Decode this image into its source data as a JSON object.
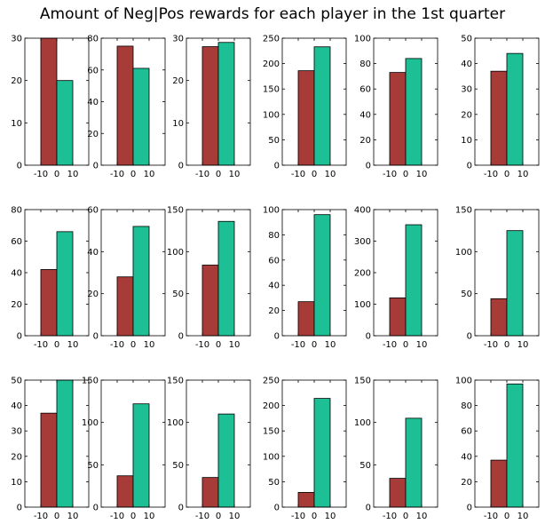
{
  "title": "Amount of Neg|Pos rewards for each player in the 1st quarter",
  "colors": {
    "neg": "#a63b38",
    "pos": "#1dbf94",
    "axis": "#000000"
  },
  "chart_data": [
    {
      "type": "bar",
      "x": [
        -5,
        5
      ],
      "values": [
        30,
        20
      ],
      "ylim": [
        0,
        30
      ],
      "yticks": [
        0,
        10,
        20,
        30
      ],
      "xticks": [
        -10,
        0,
        10
      ]
    },
    {
      "type": "bar",
      "x": [
        -5,
        5
      ],
      "values": [
        75,
        61
      ],
      "ylim": [
        0,
        80
      ],
      "yticks": [
        0,
        20,
        40,
        60,
        80
      ],
      "xticks": [
        -10,
        0,
        10
      ]
    },
    {
      "type": "bar",
      "x": [
        -5,
        5
      ],
      "values": [
        28,
        29
      ],
      "ylim": [
        0,
        30
      ],
      "yticks": [
        0,
        10,
        20,
        30
      ],
      "xticks": [
        -10,
        0,
        10
      ]
    },
    {
      "type": "bar",
      "x": [
        -5,
        5
      ],
      "values": [
        186,
        233
      ],
      "ylim": [
        0,
        250
      ],
      "yticks": [
        0,
        50,
        100,
        150,
        200,
        250
      ],
      "xticks": [
        -10,
        0,
        10
      ]
    },
    {
      "type": "bar",
      "x": [
        -5,
        5
      ],
      "values": [
        73,
        84
      ],
      "ylim": [
        0,
        100
      ],
      "yticks": [
        0,
        20,
        40,
        60,
        80,
        100
      ],
      "xticks": [
        -10,
        0,
        10
      ]
    },
    {
      "type": "bar",
      "x": [
        -5,
        5
      ],
      "values": [
        37,
        44
      ],
      "ylim": [
        0,
        50
      ],
      "yticks": [
        0,
        10,
        20,
        30,
        40,
        50
      ],
      "xticks": [
        -10,
        0,
        10
      ]
    },
    {
      "type": "bar",
      "x": [
        -5,
        5
      ],
      "values": [
        42,
        66
      ],
      "ylim": [
        0,
        80
      ],
      "yticks": [
        0,
        20,
        40,
        60,
        80
      ],
      "xticks": [
        -10,
        0,
        10
      ]
    },
    {
      "type": "bar",
      "x": [
        -5,
        5
      ],
      "values": [
        28,
        52
      ],
      "ylim": [
        0,
        60
      ],
      "yticks": [
        0,
        20,
        40,
        60
      ],
      "xticks": [
        -10,
        0,
        10
      ]
    },
    {
      "type": "bar",
      "x": [
        -5,
        5
      ],
      "values": [
        84,
        136
      ],
      "ylim": [
        0,
        150
      ],
      "yticks": [
        0,
        50,
        100,
        150
      ],
      "xticks": [
        -10,
        0,
        10
      ]
    },
    {
      "type": "bar",
      "x": [
        -5,
        5
      ],
      "values": [
        27,
        96
      ],
      "ylim": [
        0,
        100
      ],
      "yticks": [
        0,
        20,
        40,
        60,
        80,
        100
      ],
      "xticks": [
        -10,
        0,
        10
      ]
    },
    {
      "type": "bar",
      "x": [
        -5,
        5
      ],
      "values": [
        120,
        352
      ],
      "ylim": [
        0,
        400
      ],
      "yticks": [
        0,
        100,
        200,
        300,
        400
      ],
      "xticks": [
        -10,
        0,
        10
      ]
    },
    {
      "type": "bar",
      "x": [
        -5,
        5
      ],
      "values": [
        44,
        125
      ],
      "ylim": [
        0,
        150
      ],
      "yticks": [
        0,
        50,
        100,
        150
      ],
      "xticks": [
        -10,
        0,
        10
      ]
    },
    {
      "type": "bar",
      "x": [
        -5,
        5
      ],
      "values": [
        37,
        50
      ],
      "ylim": [
        0,
        50
      ],
      "yticks": [
        0,
        10,
        20,
        30,
        40,
        50
      ],
      "xticks": [
        -10,
        0,
        10
      ]
    },
    {
      "type": "bar",
      "x": [
        -5,
        5
      ],
      "values": [
        37,
        122
      ],
      "ylim": [
        0,
        150
      ],
      "yticks": [
        0,
        50,
        100,
        150
      ],
      "xticks": [
        -10,
        0,
        10
      ]
    },
    {
      "type": "bar",
      "x": [
        -5,
        5
      ],
      "values": [
        35,
        110
      ],
      "ylim": [
        0,
        150
      ],
      "yticks": [
        0,
        50,
        100,
        150
      ],
      "xticks": [
        -10,
        0,
        10
      ]
    },
    {
      "type": "bar",
      "x": [
        -5,
        5
      ],
      "values": [
        29,
        214
      ],
      "ylim": [
        0,
        250
      ],
      "yticks": [
        0,
        50,
        100,
        150,
        200,
        250
      ],
      "xticks": [
        -10,
        0,
        10
      ]
    },
    {
      "type": "bar",
      "x": [
        -5,
        5
      ],
      "values": [
        34,
        105
      ],
      "ylim": [
        0,
        150
      ],
      "yticks": [
        0,
        50,
        100,
        150
      ],
      "xticks": [
        -10,
        0,
        10
      ]
    },
    {
      "type": "bar",
      "x": [
        -5,
        5
      ],
      "values": [
        37,
        97
      ],
      "ylim": [
        0,
        100
      ],
      "yticks": [
        0,
        20,
        40,
        60,
        80,
        100
      ],
      "xticks": [
        -10,
        0,
        10
      ]
    }
  ]
}
